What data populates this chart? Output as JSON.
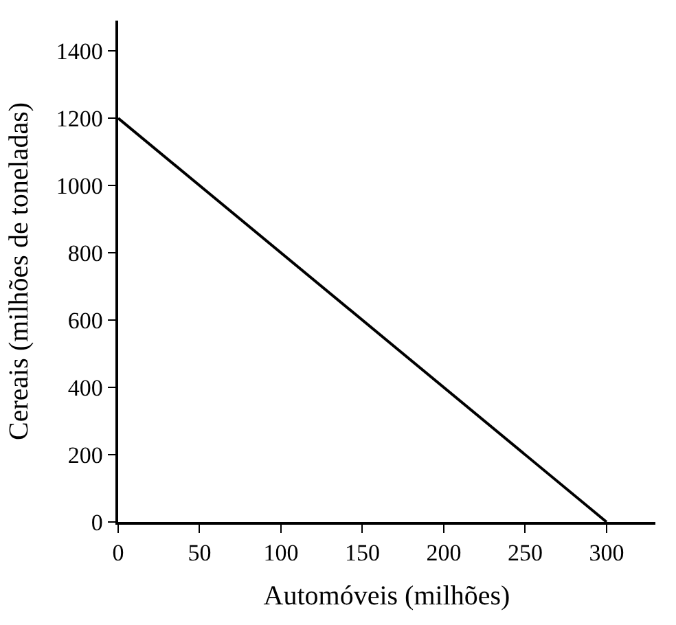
{
  "chart_data": {
    "type": "line",
    "xlabel": "Automóveis (milhões)",
    "ylabel": "Cereais (milhões de toneladas)",
    "x": [
      0,
      300
    ],
    "series": [
      {
        "color": "#000000",
        "values": [
          1200,
          0
        ]
      }
    ],
    "xlim": [
      0,
      330
    ],
    "xticks": [
      0,
      50,
      100,
      150,
      200,
      250,
      300
    ],
    "ylim": [
      0,
      1490
    ],
    "yticks": [
      0,
      200,
      400,
      600,
      800,
      1000,
      1200,
      1400
    ],
    "marker": "none",
    "line_style": "solid"
  }
}
